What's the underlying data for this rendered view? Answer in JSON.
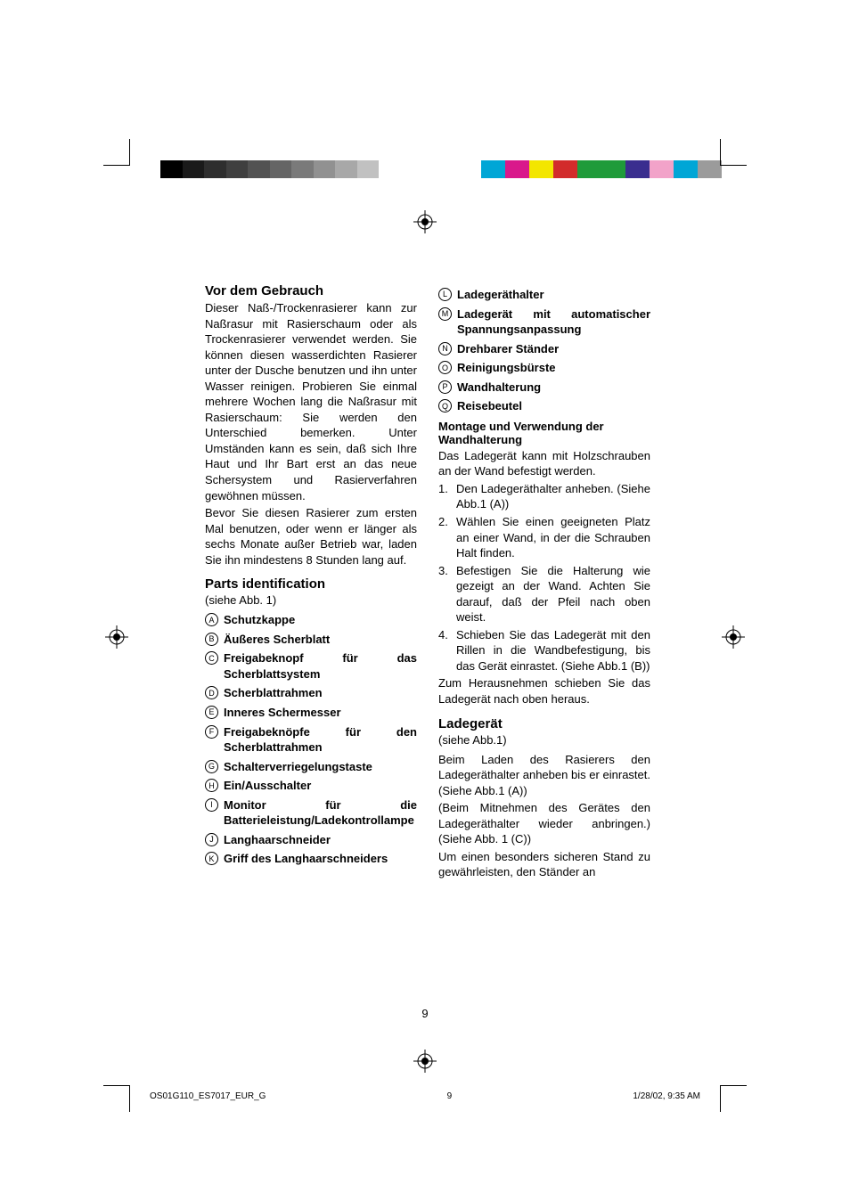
{
  "colorbar1": [
    "#000000",
    "#1a1a1a",
    "#2e2e2e",
    "#3f3f3f",
    "#525252",
    "#656565",
    "#7a7a7a",
    "#919191",
    "#a8a8a8",
    "#c1c1c1",
    "#ffffff"
  ],
  "colorbar2": [
    "#00a6d6",
    "#d9188b",
    "#f3e600",
    "#d22b2b",
    "#1f9b3a",
    "#1f9b3a",
    "#3a2e8f",
    "#f2a3c9",
    "#00a6d6",
    "#9b9b9b"
  ],
  "section1": {
    "title": "Vor dem Gebrauch",
    "p1": "Dieser Naß-/Trockenrasierer kann zur Naßrasur mit Rasierschaum oder als Trockenrasierer verwendet werden. Sie können diesen wasserdichten Rasierer unter der Dusche benutzen und ihn unter Wasser reinigen. Probieren Sie einmal mehrere Wochen lang die Naßrasur mit Rasierschaum: Sie werden den Unterschied bemerken. Unter Umständen kann es sein, daß sich Ihre Haut und Ihr Bart erst an das neue Schersystem und Rasierverfahren gewöhnen müssen.",
    "p2": "Bevor Sie diesen Rasierer zum ersten Mal benutzen, oder wenn er länger als sechs Monate außer Betrieb war, laden Sie ihn mindestens 8 Stunden lang auf."
  },
  "section2": {
    "title": "Parts identification",
    "sub": "(siehe Abb. 1)",
    "items": [
      {
        "k": "A",
        "t": "Schutzkappe"
      },
      {
        "k": "B",
        "t": "Äußeres Scherblatt"
      },
      {
        "k": "C",
        "t": "Freigabeknopf für das Scherblattsystem"
      },
      {
        "k": "D",
        "t": "Scherblattrahmen"
      },
      {
        "k": "E",
        "t": "Inneres Schermesser"
      },
      {
        "k": "F",
        "t": "Freigabeknöpfe für den Scherblattrahmen"
      },
      {
        "k": "G",
        "t": "Schalterverriegelungstaste"
      },
      {
        "k": "H",
        "t": "Ein/Ausschalter"
      },
      {
        "k": "I",
        "t": "Monitor für die Batterieleistung/Ladekontrollampe"
      },
      {
        "k": "J",
        "t": "Langhaarschneider"
      },
      {
        "k": "K",
        "t": "Griff des Langhaarschneiders"
      }
    ]
  },
  "section2b": {
    "items": [
      {
        "k": "L",
        "t": "Ladegeräthalter"
      },
      {
        "k": "M",
        "t": "Ladegerät mit automatischer Spannungsanpassung"
      },
      {
        "k": "N",
        "t": "Drehbarer Ständer"
      },
      {
        "k": "O",
        "t": "Reinigungsbürste"
      },
      {
        "k": "P",
        "t": "Wandhalterung"
      },
      {
        "k": "Q",
        "t": "Reisebeutel"
      }
    ]
  },
  "section3": {
    "title": "Montage und Verwendung der Wandhalterung",
    "p1": "Das Ladegerät kann mit Holzschrauben an der Wand befestigt werden.",
    "steps": [
      "Den Ladegeräthalter anheben. (Siehe Abb.1 (A))",
      "Wählen Sie einen geeigneten Platz an einer Wand, in der die Schrauben Halt finden.",
      "Befestigen Sie die Halterung wie gezeigt an der Wand. Achten Sie darauf, daß der Pfeil nach oben weist.",
      "Schieben Sie das Ladegerät mit den Rillen in die Wandbefestigung, bis das Gerät einrastet. (Siehe Abb.1 (B))"
    ],
    "p2": "Zum Herausnehmen schieben Sie das Ladegerät nach oben heraus."
  },
  "section4": {
    "title": "Ladegerät",
    "sub": "(siehe Abb.1)",
    "p1": "Beim Laden des Rasierers den Ladegeräthalter anheben bis er einrastet. (Siehe Abb.1 (A))",
    "p2": "(Beim Mitnehmen des Gerätes den Ladegeräthalter wieder anbringen.) (Siehe Abb. 1 (C))",
    "p3": "Um einen besonders sicheren Stand zu gewährleisten, den Ständer an"
  },
  "pagenum": "9",
  "footer": {
    "left": "OS01G110_ES7017_EUR_G",
    "mid": "9",
    "right": "1/28/02, 9:35 AM"
  }
}
